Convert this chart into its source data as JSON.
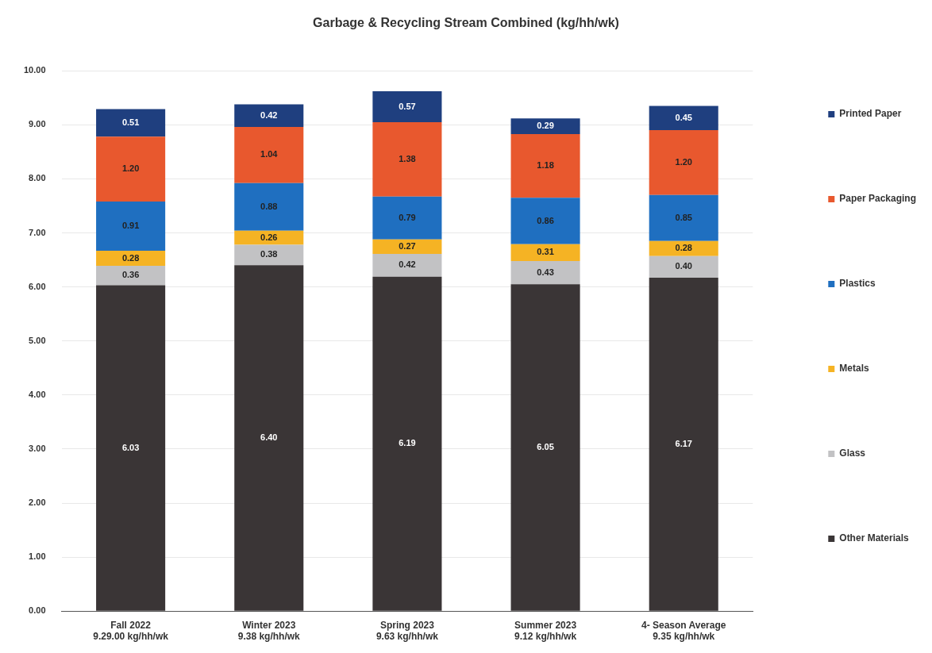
{
  "chart_data": {
    "type": "bar",
    "title": "Garbage & Recycling Stream Combined (kg/hh/wk)",
    "stacked": true,
    "legend": "right",
    "grid": "y",
    "categories": [
      "Fall 2022\n9.29.00 kg/hh/wk",
      "Winter 2023\n9.38 kg/hh/wk",
      "Spring 2023\n9.63 kg/hh/wk",
      "Summer 2023\n9.12 kg/hh/wk",
      "4- Season Average\n9.35 kg/hh/wk"
    ],
    "ylim": [
      0,
      10
    ],
    "yticks": [
      {
        "value": 0,
        "label": "0.00"
      },
      {
        "value": 1,
        "label": "1.00"
      },
      {
        "value": 2,
        "label": "2.00"
      },
      {
        "value": 3,
        "label": "3.00"
      },
      {
        "value": 4,
        "label": "4.00"
      },
      {
        "value": 5,
        "label": "5.00"
      },
      {
        "value": 6,
        "label": "6.00"
      },
      {
        "value": 7,
        "label": "7.00"
      },
      {
        "value": 8,
        "label": "8.00"
      },
      {
        "value": 9,
        "label": "9.00"
      },
      {
        "value": 10,
        "label": "10.00"
      }
    ],
    "series": [
      {
        "name": "Other Materials",
        "color": "#3a3536",
        "values": [
          6.03,
          6.4,
          6.19,
          6.05,
          6.17
        ],
        "value_labels": [
          "6.03",
          "6.40",
          "6.19",
          "6.05",
          "6.17"
        ]
      },
      {
        "name": "Glass",
        "color": "#c2c2c4",
        "values": [
          0.36,
          0.38,
          0.42,
          0.43,
          0.4
        ],
        "value_labels": [
          "0.36",
          "0.38",
          "0.42",
          "0.43",
          "0.40"
        ]
      },
      {
        "name": "Metals",
        "color": "#f5b324",
        "values": [
          0.28,
          0.26,
          0.27,
          0.31,
          0.28
        ],
        "value_labels": [
          "0.28",
          "0.26",
          "0.27",
          "0.31",
          "0.28"
        ]
      },
      {
        "name": "Plastics",
        "color": "#1f6fc0",
        "values": [
          0.91,
          0.88,
          0.79,
          0.86,
          0.85
        ],
        "value_labels": [
          "0.91",
          "0.88",
          "0.79",
          "0.86",
          "0.85"
        ]
      },
      {
        "name": "Paper Packaging",
        "color": "#e8582e",
        "values": [
          1.2,
          1.04,
          1.38,
          1.18,
          1.2
        ],
        "value_labels": [
          "1.20",
          "1.04",
          "1.38",
          "1.18",
          "1.20"
        ]
      },
      {
        "name": "Printed Paper",
        "color": "#1f3f7f",
        "values": [
          0.51,
          0.42,
          0.57,
          0.29,
          0.45
        ],
        "value_labels": [
          "0.51",
          "0.42",
          "0.57",
          "0.29",
          "0.45"
        ]
      }
    ]
  }
}
